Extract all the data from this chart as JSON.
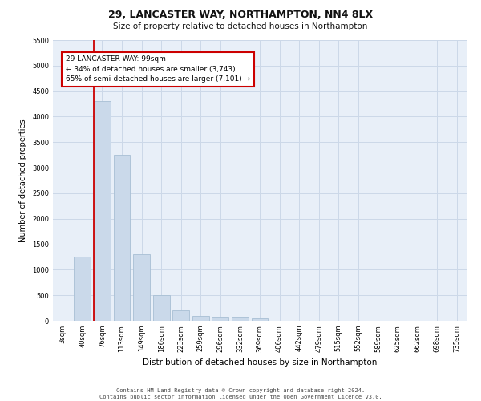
{
  "title_line1": "29, LANCASTER WAY, NORTHAMPTON, NN4 8LX",
  "title_line2": "Size of property relative to detached houses in Northampton",
  "xlabel": "Distribution of detached houses by size in Northampton",
  "ylabel": "Number of detached properties",
  "footer_line1": "Contains HM Land Registry data © Crown copyright and database right 2024.",
  "footer_line2": "Contains public sector information licensed under the Open Government Licence v3.0.",
  "bar_labels": [
    "3sqm",
    "40sqm",
    "76sqm",
    "113sqm",
    "149sqm",
    "186sqm",
    "223sqm",
    "259sqm",
    "296sqm",
    "332sqm",
    "369sqm",
    "406sqm",
    "442sqm",
    "479sqm",
    "515sqm",
    "552sqm",
    "589sqm",
    "625sqm",
    "662sqm",
    "698sqm",
    "735sqm"
  ],
  "bar_values": [
    0,
    1250,
    4300,
    3250,
    1300,
    500,
    200,
    100,
    75,
    75,
    50,
    0,
    0,
    0,
    0,
    0,
    0,
    0,
    0,
    0,
    0
  ],
  "bar_color": "#cad9ea",
  "bar_edge_color": "#a8bfd4",
  "red_line_index": 2,
  "annotation_text": "29 LANCASTER WAY: 99sqm\n← 34% of detached houses are smaller (3,743)\n65% of semi-detached houses are larger (7,101) →",
  "annotation_box_facecolor": "#ffffff",
  "annotation_box_edgecolor": "#cc0000",
  "ylim_max": 5500,
  "yticks": [
    0,
    500,
    1000,
    1500,
    2000,
    2500,
    3000,
    3500,
    4000,
    4500,
    5000,
    5500
  ],
  "grid_color": "#ccd8e8",
  "background_color": "#e8eff8",
  "title1_fontsize": 9,
  "title2_fontsize": 7.5,
  "ylabel_fontsize": 7,
  "xlabel_fontsize": 7.5,
  "tick_fontsize": 6,
  "annotation_fontsize": 6.5,
  "footer_fontsize": 5
}
